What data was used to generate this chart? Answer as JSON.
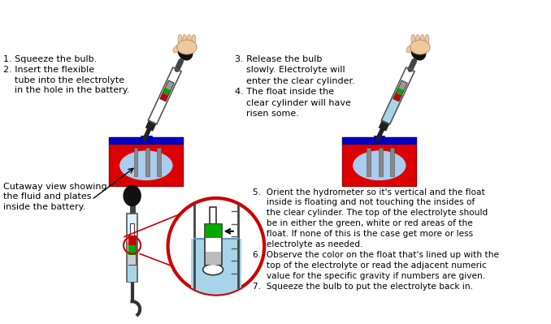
{
  "bg_color": "#ffffff",
  "text_step1": "1. Squeeze the bulb.\n2. Insert the flexible\n    tube into the electrolyte\n    in the hole in the battery.",
  "text_step3": "3. Release the bulb\n    slowly. Electrolyte will\n    enter the clear cylinder.\n4. The float inside the\n    clear cylinder will have\n    risen some.",
  "text_cutaway": "Cutaway view showing\nthe fluid and plates\ninside the battery.",
  "text_step5": "5.  Orient the hydrometer so it's vertical and the float\n     inside is floating and not touching the insides of\n     the clear cylinder. The top of the electrolyte should\n     be in either the green, white or red areas of the\n     float. If none of this is the case get more or less\n     electrolyte as needed.\n6.  Observe the color on the float that's lined up with the\n     top of the electrolyte or read the adjacent numeric\n     value for the specific gravity if numbers are given.\n7.  Squeeze the bulb to put the electrolyte back in.",
  "battery_red": "#dd0000",
  "battery_blue": "#0000cc",
  "battery_light_blue": "#aaccee",
  "hand_color": "#f0c8a0",
  "bulb_color": "#111111",
  "cylinder_color": "#a8d4ea",
  "float_red": "#cc0000",
  "float_green": "#00aa00",
  "float_white": "#ffffff",
  "float_gray": "#999999",
  "circle_red": "#cc0000",
  "plate_color": "#888888"
}
